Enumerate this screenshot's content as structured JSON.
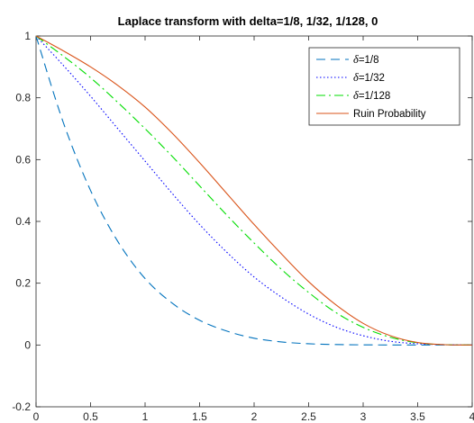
{
  "chart_data": {
    "type": "line",
    "title": "Laplace transform with delta=1/8, 1/32, 1/128, 0",
    "xlabel": "",
    "ylabel": "",
    "xlim": [
      0,
      4
    ],
    "ylim": [
      -0.2,
      1
    ],
    "xticks": [
      0,
      0.5,
      1,
      1.5,
      2,
      2.5,
      3,
      3.5,
      4
    ],
    "yticks": [
      -0.2,
      0,
      0.2,
      0.4,
      0.6,
      0.8,
      1
    ],
    "xtick_labels": [
      "0",
      "0.5",
      "1",
      "1.5",
      "2",
      "2.5",
      "3",
      "3.5",
      "4"
    ],
    "ytick_labels": [
      "-0.2",
      "0",
      "0.2",
      "0.4",
      "0.6",
      "0.8",
      "1"
    ],
    "grid": false,
    "legend_position": "top-right",
    "x": [
      0,
      0.25,
      0.5,
      0.75,
      1,
      1.25,
      1.5,
      1.75,
      2,
      2.25,
      2.5,
      2.75,
      3,
      3.25,
      3.5,
      3.75,
      4
    ],
    "series": [
      {
        "name_prefix": "δ",
        "name_suffix": "=1/8",
        "color": "#0072BD",
        "dash": "dashed",
        "values": [
          1,
          0.72,
          0.5,
          0.335,
          0.215,
          0.135,
          0.08,
          0.045,
          0.022,
          0.01,
          0.004,
          0.0015,
          0.0005,
          0.0001,
          0,
          0,
          0
        ]
      },
      {
        "name_prefix": "δ",
        "name_suffix": "=1/32",
        "color": "#0000FF",
        "dash": "dotted",
        "values": [
          1,
          0.905,
          0.805,
          0.7,
          0.595,
          0.49,
          0.39,
          0.3,
          0.22,
          0.155,
          0.1,
          0.058,
          0.03,
          0.012,
          0.004,
          0.001,
          0
        ]
      },
      {
        "name_prefix": "δ",
        "name_suffix": "=1/128",
        "color": "#00DD00",
        "dash": "dashdot",
        "values": [
          1,
          0.935,
          0.865,
          0.785,
          0.7,
          0.61,
          0.515,
          0.42,
          0.33,
          0.245,
          0.17,
          0.105,
          0.057,
          0.025,
          0.007,
          0.001,
          0
        ]
      },
      {
        "name": "Ruin Probability",
        "color": "#D95319",
        "dash": "solid",
        "values": [
          1,
          0.952,
          0.9,
          0.84,
          0.77,
          0.685,
          0.59,
          0.49,
          0.39,
          0.295,
          0.205,
          0.13,
          0.07,
          0.03,
          0.008,
          0.001,
          0
        ]
      }
    ]
  }
}
